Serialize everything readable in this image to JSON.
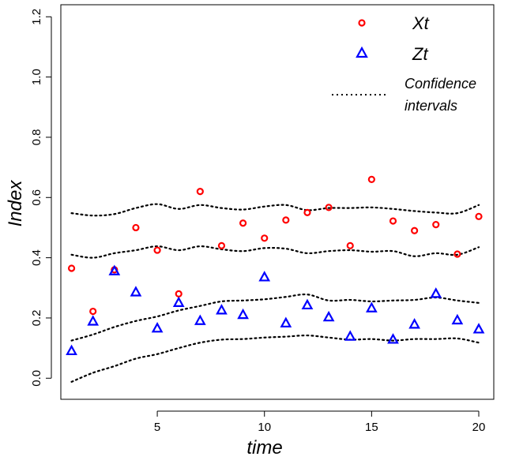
{
  "chart_data": {
    "type": "scatter",
    "xlabel": "time",
    "ylabel": "Index",
    "xlim": [
      0.5,
      20.7
    ],
    "ylim": [
      -0.07,
      1.24
    ],
    "xticks": [
      "5",
      "10",
      "15",
      "20"
    ],
    "yticks": [
      "0.0",
      "0.2",
      "0.4",
      "0.6",
      "0.8",
      "1.0",
      "1.2"
    ],
    "grid": false,
    "legend_position": "top-right",
    "colors": {
      "xt": "#ff0000",
      "zt": "#0000ff",
      "ci": "#000000"
    },
    "series": [
      {
        "name": "Xt",
        "marker": "circle",
        "x": [
          1,
          2,
          3,
          4,
          5,
          6,
          7,
          8,
          9,
          10,
          11,
          12,
          13,
          14,
          15,
          16,
          17,
          18,
          19,
          20
        ],
        "y": [
          0.365,
          0.222,
          0.36,
          0.5,
          0.425,
          0.28,
          0.62,
          0.44,
          0.515,
          0.465,
          0.525,
          0.55,
          0.567,
          0.44,
          0.66,
          0.522,
          0.49,
          0.51,
          0.412,
          0.537
        ]
      },
      {
        "name": "Zt",
        "marker": "triangle",
        "x": [
          1,
          2,
          3,
          4,
          5,
          6,
          7,
          8,
          9,
          10,
          11,
          12,
          13,
          14,
          15,
          16,
          17,
          18,
          19,
          20
        ],
        "y": [
          0.09,
          0.188,
          0.355,
          0.285,
          0.165,
          0.25,
          0.19,
          0.225,
          0.21,
          0.335,
          0.182,
          0.242,
          0.202,
          0.138,
          0.232,
          0.128,
          0.178,
          0.28,
          0.192,
          0.162
        ]
      }
    ],
    "confidence_intervals": {
      "name": "Confidence intervals",
      "style": "dotted",
      "lines": [
        {
          "x": [
            1,
            2,
            3,
            4,
            5,
            6,
            7,
            8,
            9,
            10,
            11,
            12,
            13,
            14,
            15,
            16,
            17,
            18,
            19,
            20
          ],
          "y": [
            0.548,
            0.54,
            0.545,
            0.565,
            0.578,
            0.562,
            0.575,
            0.565,
            0.56,
            0.57,
            0.575,
            0.558,
            0.565,
            0.565,
            0.567,
            0.562,
            0.555,
            0.55,
            0.548,
            0.575
          ]
        },
        {
          "x": [
            1,
            2,
            3,
            4,
            5,
            6,
            7,
            8,
            9,
            10,
            11,
            12,
            13,
            14,
            15,
            16,
            17,
            18,
            19,
            20
          ],
          "y": [
            0.41,
            0.4,
            0.415,
            0.425,
            0.438,
            0.425,
            0.438,
            0.428,
            0.422,
            0.432,
            0.43,
            0.415,
            0.422,
            0.425,
            0.42,
            0.422,
            0.405,
            0.415,
            0.41,
            0.435
          ]
        },
        {
          "x": [
            1,
            2,
            3,
            4,
            5,
            6,
            7,
            8,
            9,
            10,
            11,
            12,
            13,
            14,
            15,
            16,
            17,
            18,
            19,
            20
          ],
          "y": [
            0.125,
            0.145,
            0.17,
            0.19,
            0.205,
            0.225,
            0.24,
            0.255,
            0.258,
            0.262,
            0.27,
            0.278,
            0.258,
            0.26,
            0.255,
            0.258,
            0.26,
            0.268,
            0.258,
            0.25
          ]
        },
        {
          "x": [
            1,
            2,
            3,
            4,
            5,
            6,
            7,
            8,
            9,
            10,
            11,
            12,
            13,
            14,
            15,
            16,
            17,
            18,
            19,
            20
          ],
          "y": [
            -0.012,
            0.018,
            0.04,
            0.065,
            0.08,
            0.1,
            0.118,
            0.128,
            0.13,
            0.135,
            0.138,
            0.142,
            0.135,
            0.128,
            0.13,
            0.125,
            0.13,
            0.13,
            0.132,
            0.118
          ]
        }
      ]
    }
  },
  "legend": {
    "xt_label": "Xt",
    "zt_label": "Zt",
    "ci_label_line1": "Confidence",
    "ci_label_line2": "intervals"
  }
}
